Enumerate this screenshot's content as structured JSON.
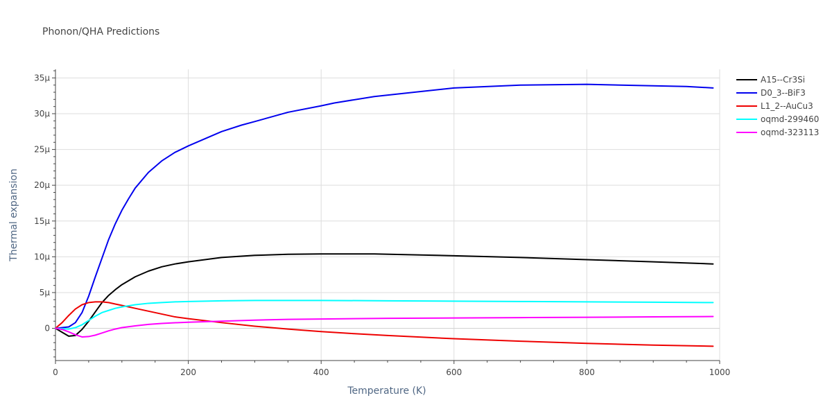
{
  "chart_data": {
    "type": "line",
    "title": "Phonon/QHA Predictions",
    "xlabel": "Temperature (K)",
    "ylabel": "Thermal expansion",
    "xlim": [
      0,
      1000
    ],
    "ylim": [
      -4.5e-06,
      3.62e-05
    ],
    "x_ticks": [
      0,
      200,
      400,
      600,
      800,
      1000
    ],
    "x_tick_labels": [
      "0",
      "200",
      "400",
      "600",
      "800",
      "1000"
    ],
    "y_ticks": [
      0,
      5e-06,
      1e-05,
      1.5e-05,
      2e-05,
      2.5e-05,
      3e-05,
      3.5e-05
    ],
    "y_tick_labels": [
      "0",
      "5μ",
      "10μ",
      "15μ",
      "20μ",
      "25μ",
      "30μ",
      "35μ"
    ],
    "grid": true,
    "legend_position": "top-right",
    "series": [
      {
        "name": "A15--Cr3Si",
        "color": "#000000",
        "x": [
          0,
          10,
          20,
          30,
          40,
          50,
          60,
          70,
          80,
          90,
          100,
          120,
          140,
          160,
          180,
          200,
          250,
          300,
          350,
          400,
          480,
          550,
          600,
          700,
          800,
          900,
          990
        ],
        "y": [
          0,
          -5.5e-07,
          -1.1e-06,
          -1e-06,
          -1.5e-07,
          1e-06,
          2.3e-06,
          3.6e-06,
          4.6e-06,
          5.4e-06,
          6.1e-06,
          7.2e-06,
          8e-06,
          8.6e-06,
          9e-06,
          9.3e-06,
          9.9e-06,
          1.02e-05,
          1.035e-05,
          1.04e-05,
          1.04e-05,
          1.025e-05,
          1.015e-05,
          9.9e-06,
          9.6e-06,
          9.3e-06,
          9e-06
        ]
      },
      {
        "name": "D0_3--BiF3",
        "color": "#0000ee",
        "x": [
          0,
          10,
          20,
          30,
          40,
          50,
          60,
          70,
          80,
          90,
          100,
          110,
          120,
          140,
          160,
          180,
          200,
          220,
          250,
          280,
          300,
          350,
          400,
          420,
          480,
          550,
          600,
          700,
          800,
          900,
          950,
          990
        ],
        "y": [
          0,
          1e-07,
          2e-07,
          8e-07,
          2.2e-06,
          4.5e-06,
          7.2e-06,
          9.8e-06,
          1.24e-05,
          1.46e-05,
          1.65e-05,
          1.81e-05,
          1.96e-05,
          2.18e-05,
          2.34e-05,
          2.46e-05,
          2.55e-05,
          2.63e-05,
          2.75e-05,
          2.84e-05,
          2.89e-05,
          3.02e-05,
          3.11e-05,
          3.15e-05,
          3.24e-05,
          3.31e-05,
          3.36e-05,
          3.4e-05,
          3.41e-05,
          3.39e-05,
          3.38e-05,
          3.36e-05
        ]
      },
      {
        "name": "L1_2--AuCu3",
        "color": "#ee0000",
        "x": [
          0,
          10,
          20,
          30,
          40,
          50,
          60,
          70,
          80,
          90,
          100,
          120,
          140,
          160,
          180,
          200,
          250,
          300,
          350,
          400,
          450,
          500,
          600,
          700,
          800,
          900,
          990
        ],
        "y": [
          0,
          8e-07,
          1.8e-06,
          2.7e-06,
          3.3e-06,
          3.6e-06,
          3.7e-06,
          3.7e-06,
          3.6e-06,
          3.4e-06,
          3.2e-06,
          2.8e-06,
          2.4e-06,
          2e-06,
          1.6e-06,
          1.35e-06,
          8e-07,
          3e-07,
          -1e-07,
          -4.5e-07,
          -7.5e-07,
          -1e-06,
          -1.45e-06,
          -1.8e-06,
          -2.1e-06,
          -2.35e-06,
          -2.5e-06
        ]
      },
      {
        "name": "oqmd-299460",
        "color": "#00ffff",
        "x": [
          0,
          10,
          20,
          30,
          40,
          50,
          60,
          70,
          80,
          90,
          100,
          120,
          140,
          160,
          180,
          200,
          250,
          300,
          350,
          400,
          500,
          600,
          700,
          800,
          900,
          990
        ],
        "y": [
          0,
          -5e-08,
          -1e-07,
          1e-07,
          5e-07,
          1.1e-06,
          1.7e-06,
          2.2e-06,
          2.5e-06,
          2.8e-06,
          3e-06,
          3.3e-06,
          3.5e-06,
          3.6e-06,
          3.7e-06,
          3.75e-06,
          3.85e-06,
          3.9e-06,
          3.9e-06,
          3.9e-06,
          3.85e-06,
          3.8e-06,
          3.75e-06,
          3.7e-06,
          3.65e-06,
          3.6e-06
        ]
      },
      {
        "name": "oqmd-323113",
        "color": "#ff00ff",
        "x": [
          0,
          10,
          20,
          30,
          40,
          50,
          60,
          70,
          80,
          90,
          100,
          120,
          140,
          160,
          180,
          200,
          250,
          300,
          350,
          400,
          500,
          600,
          700,
          800,
          900,
          990
        ],
        "y": [
          0,
          -1.5e-07,
          -5e-07,
          -9e-07,
          -1.2e-06,
          -1.15e-06,
          -9.5e-07,
          -6.5e-07,
          -3.5e-07,
          -1e-07,
          1e-07,
          3.5e-07,
          5.5e-07,
          6.8e-07,
          7.8e-07,
          8.5e-07,
          1e-06,
          1.15e-06,
          1.25e-06,
          1.3e-06,
          1.4e-06,
          1.45e-06,
          1.5e-06,
          1.55e-06,
          1.6e-06,
          1.65e-06
        ]
      }
    ]
  }
}
